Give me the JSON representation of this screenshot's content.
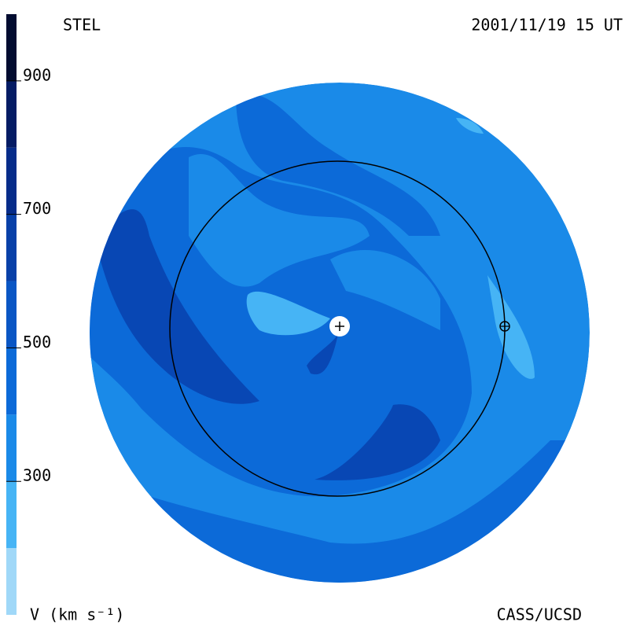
{
  "chart_data": {
    "type": "velocity-map",
    "title": "STEL",
    "date": "2001/11/19 15 UT",
    "colorbar_label": "V (km s⁻¹)",
    "credit": "CASS/UCSD",
    "colorbar": {
      "lim": [
        100,
        1000
      ],
      "ticks": [
        300,
        500,
        700,
        900
      ],
      "edges": [
        100,
        200,
        300,
        400,
        500,
        600,
        700,
        800,
        900,
        1000
      ],
      "colors": [
        "#a0d8f8",
        "#46b4f5",
        "#1a8ae8",
        "#0c6ad8",
        "#0a56c4",
        "#0840a8",
        "#062c8a",
        "#041c64",
        "#020c30"
      ]
    }
  }
}
